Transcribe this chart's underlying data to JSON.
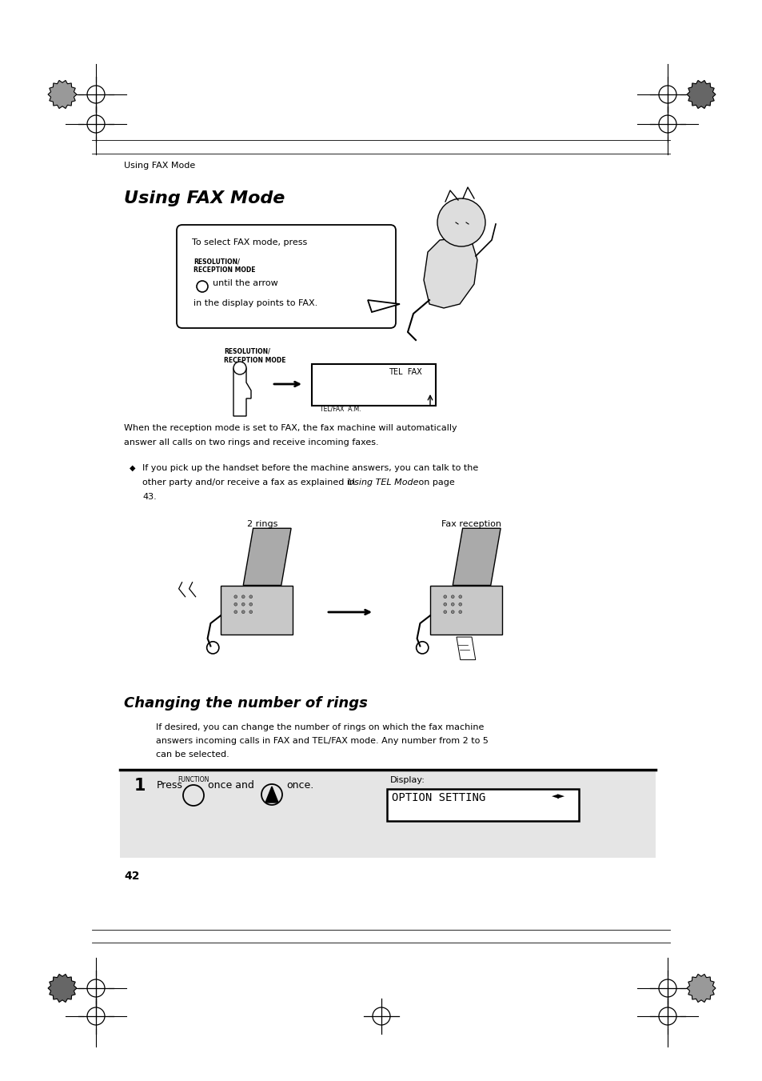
{
  "page_bg": "#ffffff",
  "page_width": 9.54,
  "page_height": 13.51,
  "header_text": "Using FAX Mode",
  "title": "Using FAX Mode",
  "section2_title": "Changing the number of rings",
  "body_text1_line1": "When the reception mode is set to FAX, the fax machine will automatically",
  "body_text1_line2": "answer all calls on two rings and receive incoming faxes.",
  "body_text2_line1": "If desired, you can change the number of rings on which the fax machine",
  "body_text2_line2": "answers incoming calls in FAX and TEL/FAX mode. Any number from 2 to 5",
  "body_text2_line3": "can be selected.",
  "label_2rings": "2 rings",
  "label_fax_reception": "Fax reception",
  "display_label": "Display:",
  "display_text": "OPTION SETTING",
  "page_number": "42",
  "function_label": "FUNCTION"
}
